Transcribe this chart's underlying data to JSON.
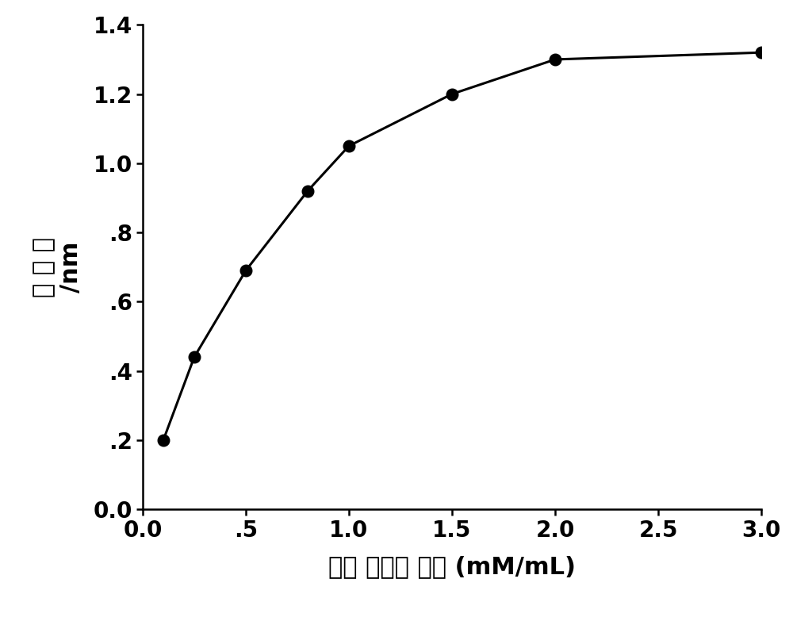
{
  "x": [
    0.1,
    0.25,
    0.5,
    0.8,
    1.0,
    1.5,
    2.0,
    3.0
  ],
  "y": [
    0.2,
    0.44,
    0.69,
    0.92,
    1.05,
    1.2,
    1.3,
    1.32
  ],
  "xlabel": "氨苄 青霍素 浓度 (mM/mL)",
  "ylabel_line1": "吸 光 値",
  "ylabel_line2": "/nm",
  "xlim": [
    0.0,
    3.0
  ],
  "ylim": [
    0.0,
    1.4
  ],
  "xticks": [
    0.0,
    0.5,
    1.0,
    1.5,
    2.0,
    2.5,
    3.0
  ],
  "xticklabels": [
    "0.0",
    ".5",
    "1.0",
    "1.5",
    "2.0",
    "2.5",
    "3.0"
  ],
  "yticks": [
    0.0,
    0.2,
    0.4,
    0.6,
    0.8,
    1.0,
    1.2,
    1.4
  ],
  "yticklabels": [
    "0.0",
    ".2",
    ".4",
    ".6",
    ".8",
    "1.0",
    "1.2",
    "1.4"
  ],
  "line_color": "#000000",
  "marker": "o",
  "marker_size": 10,
  "marker_facecolor": "#000000",
  "marker_edgecolor": "#000000",
  "linewidth": 2.2,
  "background_color": "#ffffff",
  "xlabel_fontsize": 22,
  "ylabel_fontsize": 22,
  "tick_fontsize": 20,
  "spine_linewidth": 1.8
}
